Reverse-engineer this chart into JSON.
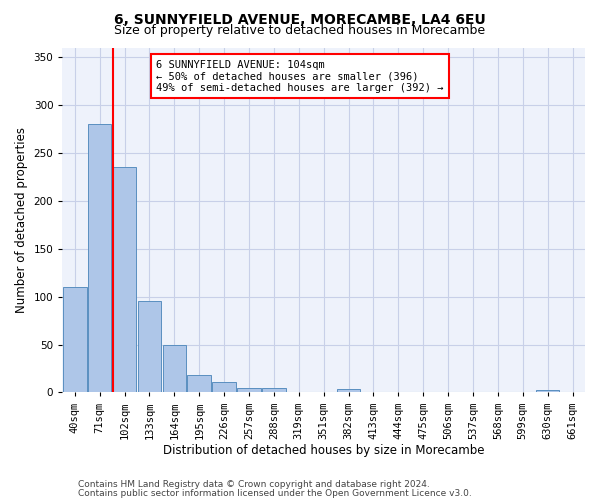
{
  "title": "6, SUNNYFIELD AVENUE, MORECAMBE, LA4 6EU",
  "subtitle": "Size of property relative to detached houses in Morecambe",
  "xlabel": "Distribution of detached houses by size in Morecambe",
  "ylabel": "Number of detached properties",
  "categories": [
    "40sqm",
    "71sqm",
    "102sqm",
    "133sqm",
    "164sqm",
    "195sqm",
    "226sqm",
    "257sqm",
    "288sqm",
    "319sqm",
    "351sqm",
    "382sqm",
    "413sqm",
    "444sqm",
    "475sqm",
    "506sqm",
    "537sqm",
    "568sqm",
    "599sqm",
    "630sqm",
    "661sqm"
  ],
  "values": [
    110,
    280,
    235,
    95,
    50,
    18,
    11,
    5,
    5,
    0,
    0,
    4,
    0,
    0,
    0,
    0,
    0,
    0,
    0,
    3,
    0
  ],
  "bar_color": "#aec6e8",
  "bar_edge_color": "#5a8fc0",
  "redline_index": 1.525,
  "annotation_label": "6 SUNNYFIELD AVENUE: 104sqm",
  "annotation_line1": "← 50% of detached houses are smaller (396)",
  "annotation_line2": "49% of semi-detached houses are larger (392) →",
  "annotation_box_color": "white",
  "annotation_box_edge_color": "red",
  "redline_color": "red",
  "ylim": [
    0,
    360
  ],
  "yticks": [
    0,
    50,
    100,
    150,
    200,
    250,
    300,
    350
  ],
  "footer1": "Contains HM Land Registry data © Crown copyright and database right 2024.",
  "footer2": "Contains public sector information licensed under the Open Government Licence v3.0.",
  "background_color": "#eef2fb",
  "grid_color": "#c8d0e8",
  "title_fontsize": 10,
  "subtitle_fontsize": 9,
  "ylabel_fontsize": 8.5,
  "xlabel_fontsize": 8.5,
  "tick_fontsize": 7.5,
  "annotation_fontsize": 7.5,
  "footer_fontsize": 6.5
}
